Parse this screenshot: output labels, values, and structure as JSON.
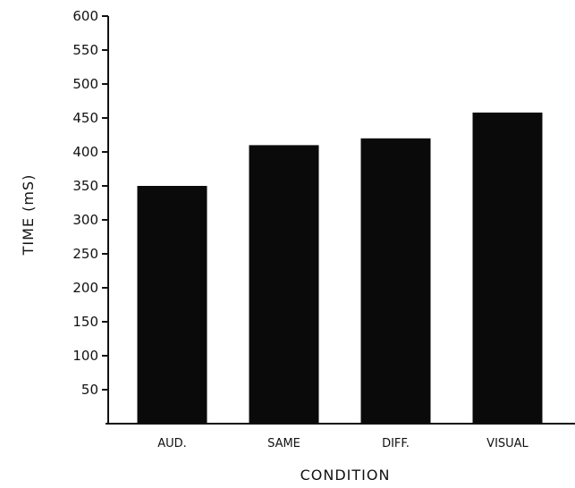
{
  "chart_data": {
    "type": "bar",
    "title": "",
    "xlabel": "CONDITION",
    "ylabel": "TIME (mS)",
    "categories": [
      "AUD.",
      "SAME",
      "DIFF.",
      "VISUAL"
    ],
    "values": [
      350,
      410,
      420,
      458
    ],
    "ylim": [
      0,
      600
    ],
    "yticks": [
      50,
      100,
      150,
      200,
      250,
      300,
      350,
      400,
      450,
      500,
      550,
      600
    ],
    "ytick_labels": [
      "50",
      "100",
      "150",
      "200",
      "250",
      "300",
      "350",
      "400",
      "450",
      "500",
      "550",
      "600"
    ],
    "grid": false,
    "legend": "none",
    "bar_color": "#0a0a0a",
    "axis_color": "#111111"
  }
}
